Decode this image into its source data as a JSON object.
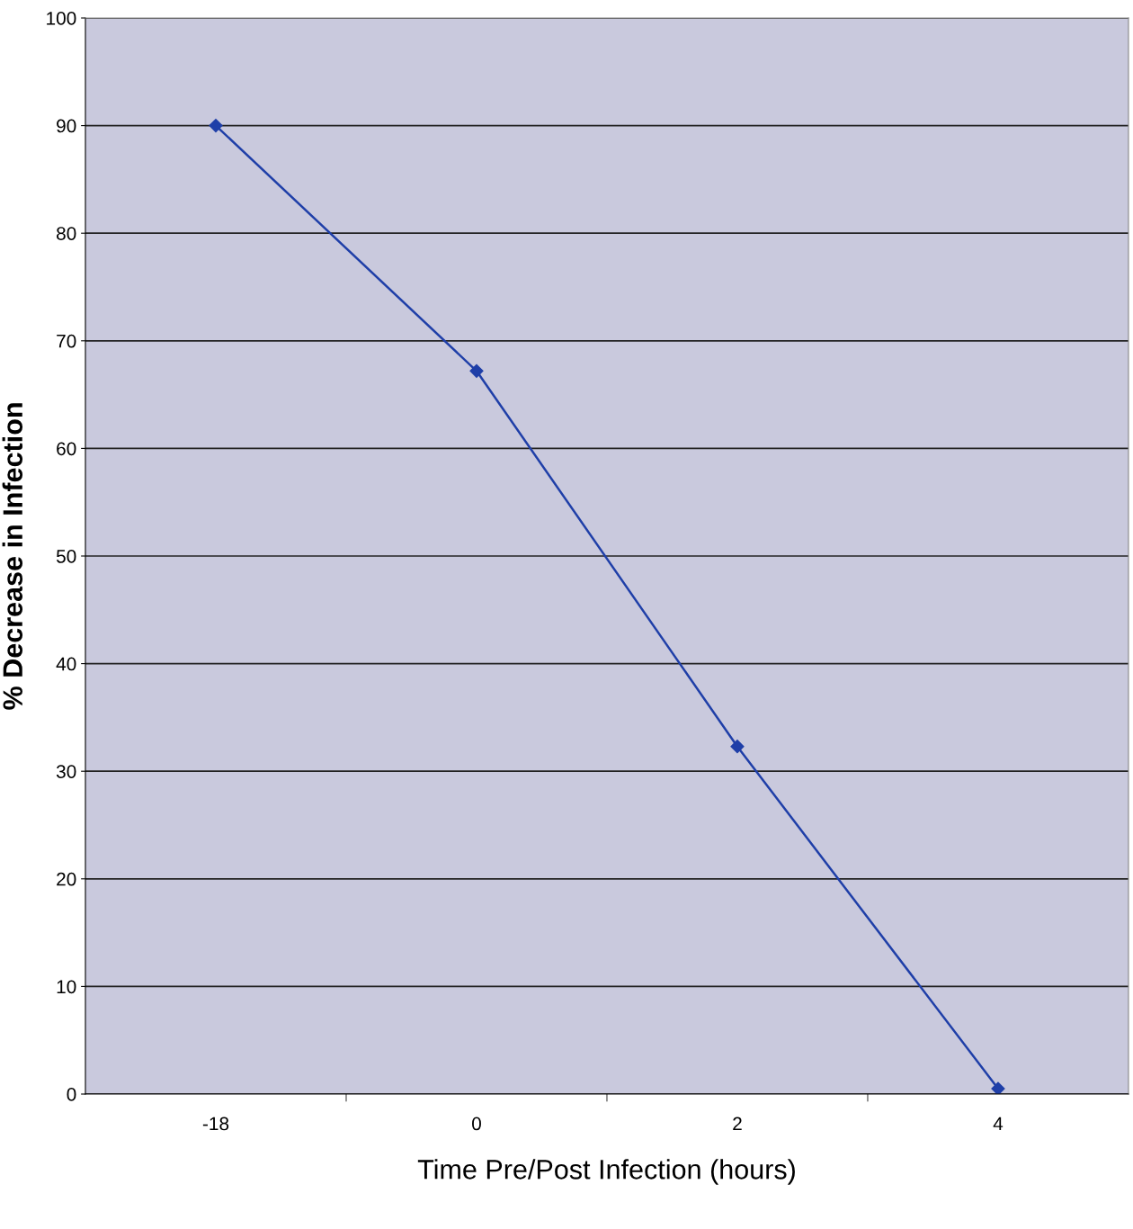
{
  "chart_data": {
    "type": "line",
    "xlabel": "Time Pre/Post Infection (hours)",
    "ylabel": "% Decrease in Infection",
    "categories": [
      "-18",
      "0",
      "2",
      "4"
    ],
    "series": [
      {
        "color": "#1f3fa8",
        "values": [
          90,
          67.2,
          32.3,
          0.5
        ]
      }
    ],
    "ylim": [
      0,
      100
    ],
    "yticks": [
      0,
      10,
      20,
      30,
      40,
      50,
      60,
      70,
      80,
      90,
      100
    ],
    "grid": "y",
    "marker": "diamond",
    "line_style": "solid"
  }
}
